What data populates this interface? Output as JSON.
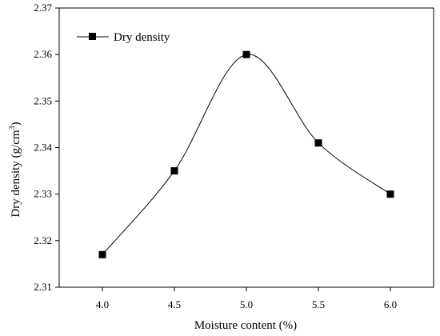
{
  "chart_data": {
    "type": "line",
    "x": [
      4.0,
      4.5,
      5.0,
      5.5,
      6.0
    ],
    "series": [
      {
        "name": "Dry density",
        "values": [
          2.317,
          2.335,
          2.36,
          2.341,
          2.33
        ]
      }
    ],
    "x_ticks": [
      "4.0",
      "4.5",
      "5.0",
      "5.5",
      "6.0"
    ],
    "y_ticks": [
      "2.31",
      "2.32",
      "2.33",
      "2.34",
      "2.35",
      "2.36",
      "2.37"
    ],
    "xlabel": "Moisture content (%)",
    "ylabel": "Dry density (g/cm",
    "ylabel_sup": "3",
    "ylabel_close": ")",
    "xlim": [
      3.7,
      6.3
    ],
    "ylim": [
      2.31,
      2.37
    ],
    "grid": false,
    "legend_position": "top-left",
    "smooth_curve": true,
    "marker": "square",
    "colors": {
      "line": "#000000",
      "marker": "#000000",
      "axis": "#000000"
    }
  }
}
